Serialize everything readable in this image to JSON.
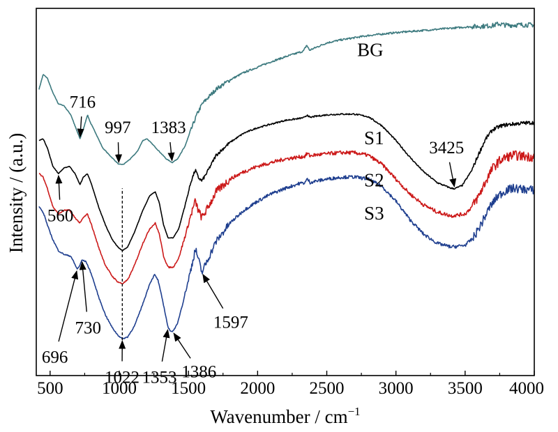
{
  "chart_data": {
    "type": "line",
    "xlabel": "Wavenumber / cm",
    "xlabel_sup": "−1",
    "ylabel": "Intensity / (a.u.)",
    "xlim": [
      400,
      4000
    ],
    "x_ticks": [
      500,
      1000,
      1500,
      2000,
      2500,
      3000,
      3500,
      4000
    ],
    "x_tick_labels": [
      "500",
      "1000",
      "1500",
      "2000",
      "2500",
      "3000",
      "3500",
      "4000"
    ],
    "y_ticks_shown": false,
    "y_range": [
      0,
      100
    ],
    "grid": false,
    "legend": "inline labels at right of curves",
    "series": [
      {
        "name": "BG",
        "color": "#3d7a7f",
        "noise": 0.5,
        "points": [
          [
            420,
            78
          ],
          [
            450,
            82
          ],
          [
            480,
            81
          ],
          [
            520,
            77
          ],
          [
            560,
            74
          ],
          [
            600,
            73.5
          ],
          [
            650,
            71
          ],
          [
            690,
            67
          ],
          [
            716,
            64.5
          ],
          [
            740,
            67
          ],
          [
            770,
            71
          ],
          [
            790,
            69
          ],
          [
            830,
            66
          ],
          [
            880,
            62
          ],
          [
            930,
            60
          ],
          [
            970,
            58.5
          ],
          [
            997,
            57.5
          ],
          [
            1030,
            57.5
          ],
          [
            1080,
            59
          ],
          [
            1130,
            61
          ],
          [
            1170,
            64
          ],
          [
            1200,
            64.5
          ],
          [
            1240,
            63
          ],
          [
            1290,
            61
          ],
          [
            1340,
            59
          ],
          [
            1383,
            58
          ],
          [
            1420,
            59
          ],
          [
            1470,
            62
          ],
          [
            1520,
            67
          ],
          [
            1560,
            71
          ],
          [
            1600,
            74
          ],
          [
            1700,
            78
          ],
          [
            1800,
            80.5
          ],
          [
            1900,
            82.5
          ],
          [
            2000,
            84
          ],
          [
            2100,
            85.5
          ],
          [
            2200,
            86.8
          ],
          [
            2300,
            88
          ],
          [
            2330,
            88.3
          ],
          [
            2355,
            90
          ],
          [
            2375,
            88.6
          ],
          [
            2400,
            89
          ],
          [
            2500,
            90.6
          ],
          [
            2600,
            91.4
          ],
          [
            2700,
            92
          ],
          [
            2800,
            92.6
          ],
          [
            2900,
            93
          ],
          [
            3000,
            93.4
          ],
          [
            3100,
            93.7
          ],
          [
            3200,
            94
          ],
          [
            3300,
            94.3
          ],
          [
            3400,
            94.6
          ],
          [
            3500,
            94.9
          ],
          [
            3600,
            95.1
          ],
          [
            3700,
            95.3
          ],
          [
            3740,
            95.8
          ],
          [
            3800,
            95.4
          ],
          [
            3900,
            95.5
          ],
          [
            4000,
            95.5
          ]
        ]
      },
      {
        "name": "S1",
        "color": "#000000",
        "noise": 0.4,
        "points": [
          [
            420,
            64
          ],
          [
            450,
            64.5
          ],
          [
            480,
            62
          ],
          [
            520,
            57
          ],
          [
            560,
            55
          ],
          [
            600,
            56.5
          ],
          [
            640,
            57
          ],
          [
            680,
            55
          ],
          [
            716,
            52
          ],
          [
            740,
            54
          ],
          [
            770,
            55
          ],
          [
            800,
            52
          ],
          [
            850,
            46
          ],
          [
            900,
            41
          ],
          [
            950,
            37
          ],
          [
            990,
            35
          ],
          [
            1022,
            34
          ],
          [
            1060,
            35
          ],
          [
            1110,
            39
          ],
          [
            1170,
            45
          ],
          [
            1220,
            49
          ],
          [
            1260,
            50
          ],
          [
            1290,
            47
          ],
          [
            1320,
            41
          ],
          [
            1353,
            37.5
          ],
          [
            1390,
            37.5
          ],
          [
            1430,
            40
          ],
          [
            1480,
            47
          ],
          [
            1520,
            53
          ],
          [
            1550,
            56
          ],
          [
            1570,
            54
          ],
          [
            1597,
            53
          ],
          [
            1630,
            55
          ],
          [
            1700,
            60
          ],
          [
            1800,
            63.5
          ],
          [
            1900,
            66
          ],
          [
            2000,
            67.5
          ],
          [
            2100,
            68.5
          ],
          [
            2200,
            69.5
          ],
          [
            2300,
            70
          ],
          [
            2340,
            70.3
          ],
          [
            2360,
            71
          ],
          [
            2380,
            70.2
          ],
          [
            2400,
            70.5
          ],
          [
            2500,
            71
          ],
          [
            2600,
            71.2
          ],
          [
            2700,
            71.2
          ],
          [
            2800,
            70.5
          ],
          [
            2900,
            68
          ],
          [
            3000,
            64
          ],
          [
            3100,
            59.5
          ],
          [
            3200,
            55.5
          ],
          [
            3300,
            52.5
          ],
          [
            3400,
            51
          ],
          [
            3425,
            50.9
          ],
          [
            3480,
            51.8
          ],
          [
            3550,
            56
          ],
          [
            3600,
            60.5
          ],
          [
            3650,
            64.5
          ],
          [
            3700,
            67
          ],
          [
            3760,
            68
          ],
          [
            3800,
            68.3
          ],
          [
            3850,
            68.5
          ],
          [
            3900,
            68.7
          ],
          [
            4000,
            68.9
          ]
        ]
      },
      {
        "name": "S2",
        "color": "#cc1a1a",
        "noise": 1.0,
        "points": [
          [
            420,
            55
          ],
          [
            450,
            54
          ],
          [
            480,
            51
          ],
          [
            520,
            46
          ],
          [
            560,
            44
          ],
          [
            600,
            45
          ],
          [
            640,
            45
          ],
          [
            680,
            43
          ],
          [
            716,
            41.5
          ],
          [
            740,
            43
          ],
          [
            770,
            44
          ],
          [
            800,
            41
          ],
          [
            850,
            35
          ],
          [
            900,
            30
          ],
          [
            950,
            27
          ],
          [
            990,
            25.5
          ],
          [
            1022,
            25
          ],
          [
            1060,
            26
          ],
          [
            1110,
            30
          ],
          [
            1170,
            36
          ],
          [
            1220,
            40
          ],
          [
            1260,
            41.5
          ],
          [
            1290,
            38.5
          ],
          [
            1320,
            32.5
          ],
          [
            1353,
            29.5
          ],
          [
            1390,
            29.5
          ],
          [
            1430,
            32
          ],
          [
            1480,
            38.5
          ],
          [
            1520,
            44
          ],
          [
            1550,
            47.5
          ],
          [
            1570,
            45
          ],
          [
            1597,
            43
          ],
          [
            1630,
            45
          ],
          [
            1700,
            50
          ],
          [
            1800,
            53.5
          ],
          [
            1900,
            55.5
          ],
          [
            2000,
            57
          ],
          [
            2100,
            58
          ],
          [
            2200,
            59
          ],
          [
            2300,
            59.5
          ],
          [
            2340,
            59.7
          ],
          [
            2360,
            60.5
          ],
          [
            2380,
            59.8
          ],
          [
            2400,
            60
          ],
          [
            2500,
            60.4
          ],
          [
            2600,
            60.7
          ],
          [
            2700,
            60.7
          ],
          [
            2800,
            60
          ],
          [
            2900,
            57.5
          ],
          [
            3000,
            53.5
          ],
          [
            3100,
            49.5
          ],
          [
            3200,
            46.5
          ],
          [
            3300,
            44.5
          ],
          [
            3400,
            43.5
          ],
          [
            3500,
            44
          ],
          [
            3550,
            46
          ],
          [
            3600,
            49
          ],
          [
            3650,
            53
          ],
          [
            3700,
            56.5
          ],
          [
            3750,
            58.5
          ],
          [
            3800,
            59.5
          ],
          [
            3850,
            60
          ],
          [
            3900,
            59.8
          ],
          [
            4000,
            59.5
          ]
        ]
      },
      {
        "name": "S3",
        "color": "#1f3f8f",
        "noise": 0.9,
        "points": [
          [
            420,
            46
          ],
          [
            440,
            45
          ],
          [
            460,
            43.5
          ],
          [
            480,
            41
          ],
          [
            520,
            37
          ],
          [
            560,
            34
          ],
          [
            600,
            33
          ],
          [
            650,
            32.5
          ],
          [
            696,
            29
          ],
          [
            715,
            30
          ],
          [
            730,
            31.5
          ],
          [
            760,
            31
          ],
          [
            800,
            27.5
          ],
          [
            850,
            21.5
          ],
          [
            900,
            16.5
          ],
          [
            950,
            13
          ],
          [
            990,
            11
          ],
          [
            1022,
            10
          ],
          [
            1060,
            10.5
          ],
          [
            1110,
            13.5
          ],
          [
            1170,
            19.5
          ],
          [
            1220,
            25
          ],
          [
            1255,
            27.5
          ],
          [
            1280,
            26
          ],
          [
            1310,
            21
          ],
          [
            1340,
            15.5
          ],
          [
            1353,
            13
          ],
          [
            1370,
            12.2
          ],
          [
            1386,
            12
          ],
          [
            1420,
            14
          ],
          [
            1460,
            20
          ],
          [
            1500,
            26
          ],
          [
            1530,
            31
          ],
          [
            1550,
            34.5
          ],
          [
            1570,
            32
          ],
          [
            1597,
            28
          ],
          [
            1620,
            30
          ],
          [
            1700,
            36.5
          ],
          [
            1800,
            41.5
          ],
          [
            1900,
            45
          ],
          [
            2000,
            47.5
          ],
          [
            2100,
            49.5
          ],
          [
            2200,
            51
          ],
          [
            2300,
            52.3
          ],
          [
            2340,
            52.5
          ],
          [
            2360,
            53.5
          ],
          [
            2380,
            52.6
          ],
          [
            2400,
            52.8
          ],
          [
            2500,
            53.5
          ],
          [
            2600,
            54
          ],
          [
            2700,
            54.1
          ],
          [
            2800,
            53.5
          ],
          [
            2900,
            51.5
          ],
          [
            3000,
            47.5
          ],
          [
            3100,
            42.5
          ],
          [
            3200,
            38.5
          ],
          [
            3300,
            36
          ],
          [
            3400,
            35
          ],
          [
            3500,
            35.5
          ],
          [
            3560,
            37.5
          ],
          [
            3620,
            41.5
          ],
          [
            3680,
            46
          ],
          [
            3740,
            49
          ],
          [
            3800,
            50.5
          ],
          [
            3850,
            51
          ],
          [
            3900,
            50.8
          ],
          [
            4000,
            50.5
          ]
        ]
      }
    ],
    "series_label_positions": [
      {
        "name": "BG",
        "x": 2720,
        "y": 87
      },
      {
        "name": "S1",
        "x": 2770,
        "y": 63
      },
      {
        "name": "S2",
        "x": 2770,
        "y": 51.5
      },
      {
        "name": "S3",
        "x": 2770,
        "y": 42.5
      }
    ],
    "dashed_marker": {
      "x": 1022,
      "y_from": 7,
      "y_to": 51
    },
    "annotations": [
      {
        "text": "716",
        "x": 716,
        "series": "BG",
        "label_x": 640,
        "label_y": 73,
        "anchor": "start"
      },
      {
        "text": "997",
        "x": 997,
        "series": "BG",
        "label_x": 895,
        "label_y": 66,
        "anchor": "start"
      },
      {
        "text": "1383",
        "x": 1383,
        "series": "BG",
        "label_x": 1230,
        "label_y": 66,
        "anchor": "start"
      },
      {
        "text": "3425",
        "x": 3425,
        "series": "S1",
        "label_x": 3240,
        "label_y": 60.5,
        "anchor": "start"
      },
      {
        "text": "560",
        "x": 560,
        "series": "S1",
        "label_x": 480,
        "label_y": 42,
        "anchor": "start"
      },
      {
        "text": "696",
        "x": 696,
        "series": "S3",
        "label_x": 440,
        "label_y": 3.5,
        "anchor": "start"
      },
      {
        "text": "730",
        "x": 730,
        "series": "S3",
        "label_x": 680,
        "label_y": 11.5,
        "anchor": "start"
      },
      {
        "text": "1022",
        "x": 1022,
        "series": "S3",
        "label_x": 1020,
        "label_y": -2,
        "anchor": "middle"
      },
      {
        "text": "1353",
        "x": 1353,
        "series": "S3",
        "label_x": 1290,
        "label_y": -2,
        "anchor": "middle"
      },
      {
        "text": "1386",
        "x": 1386,
        "series": "S3",
        "label_x": 1450,
        "label_y": -0.5,
        "anchor": "start"
      },
      {
        "text": "1597",
        "x": 1597,
        "series": "S3",
        "label_x": 1680,
        "label_y": 13,
        "anchor": "start"
      }
    ]
  }
}
